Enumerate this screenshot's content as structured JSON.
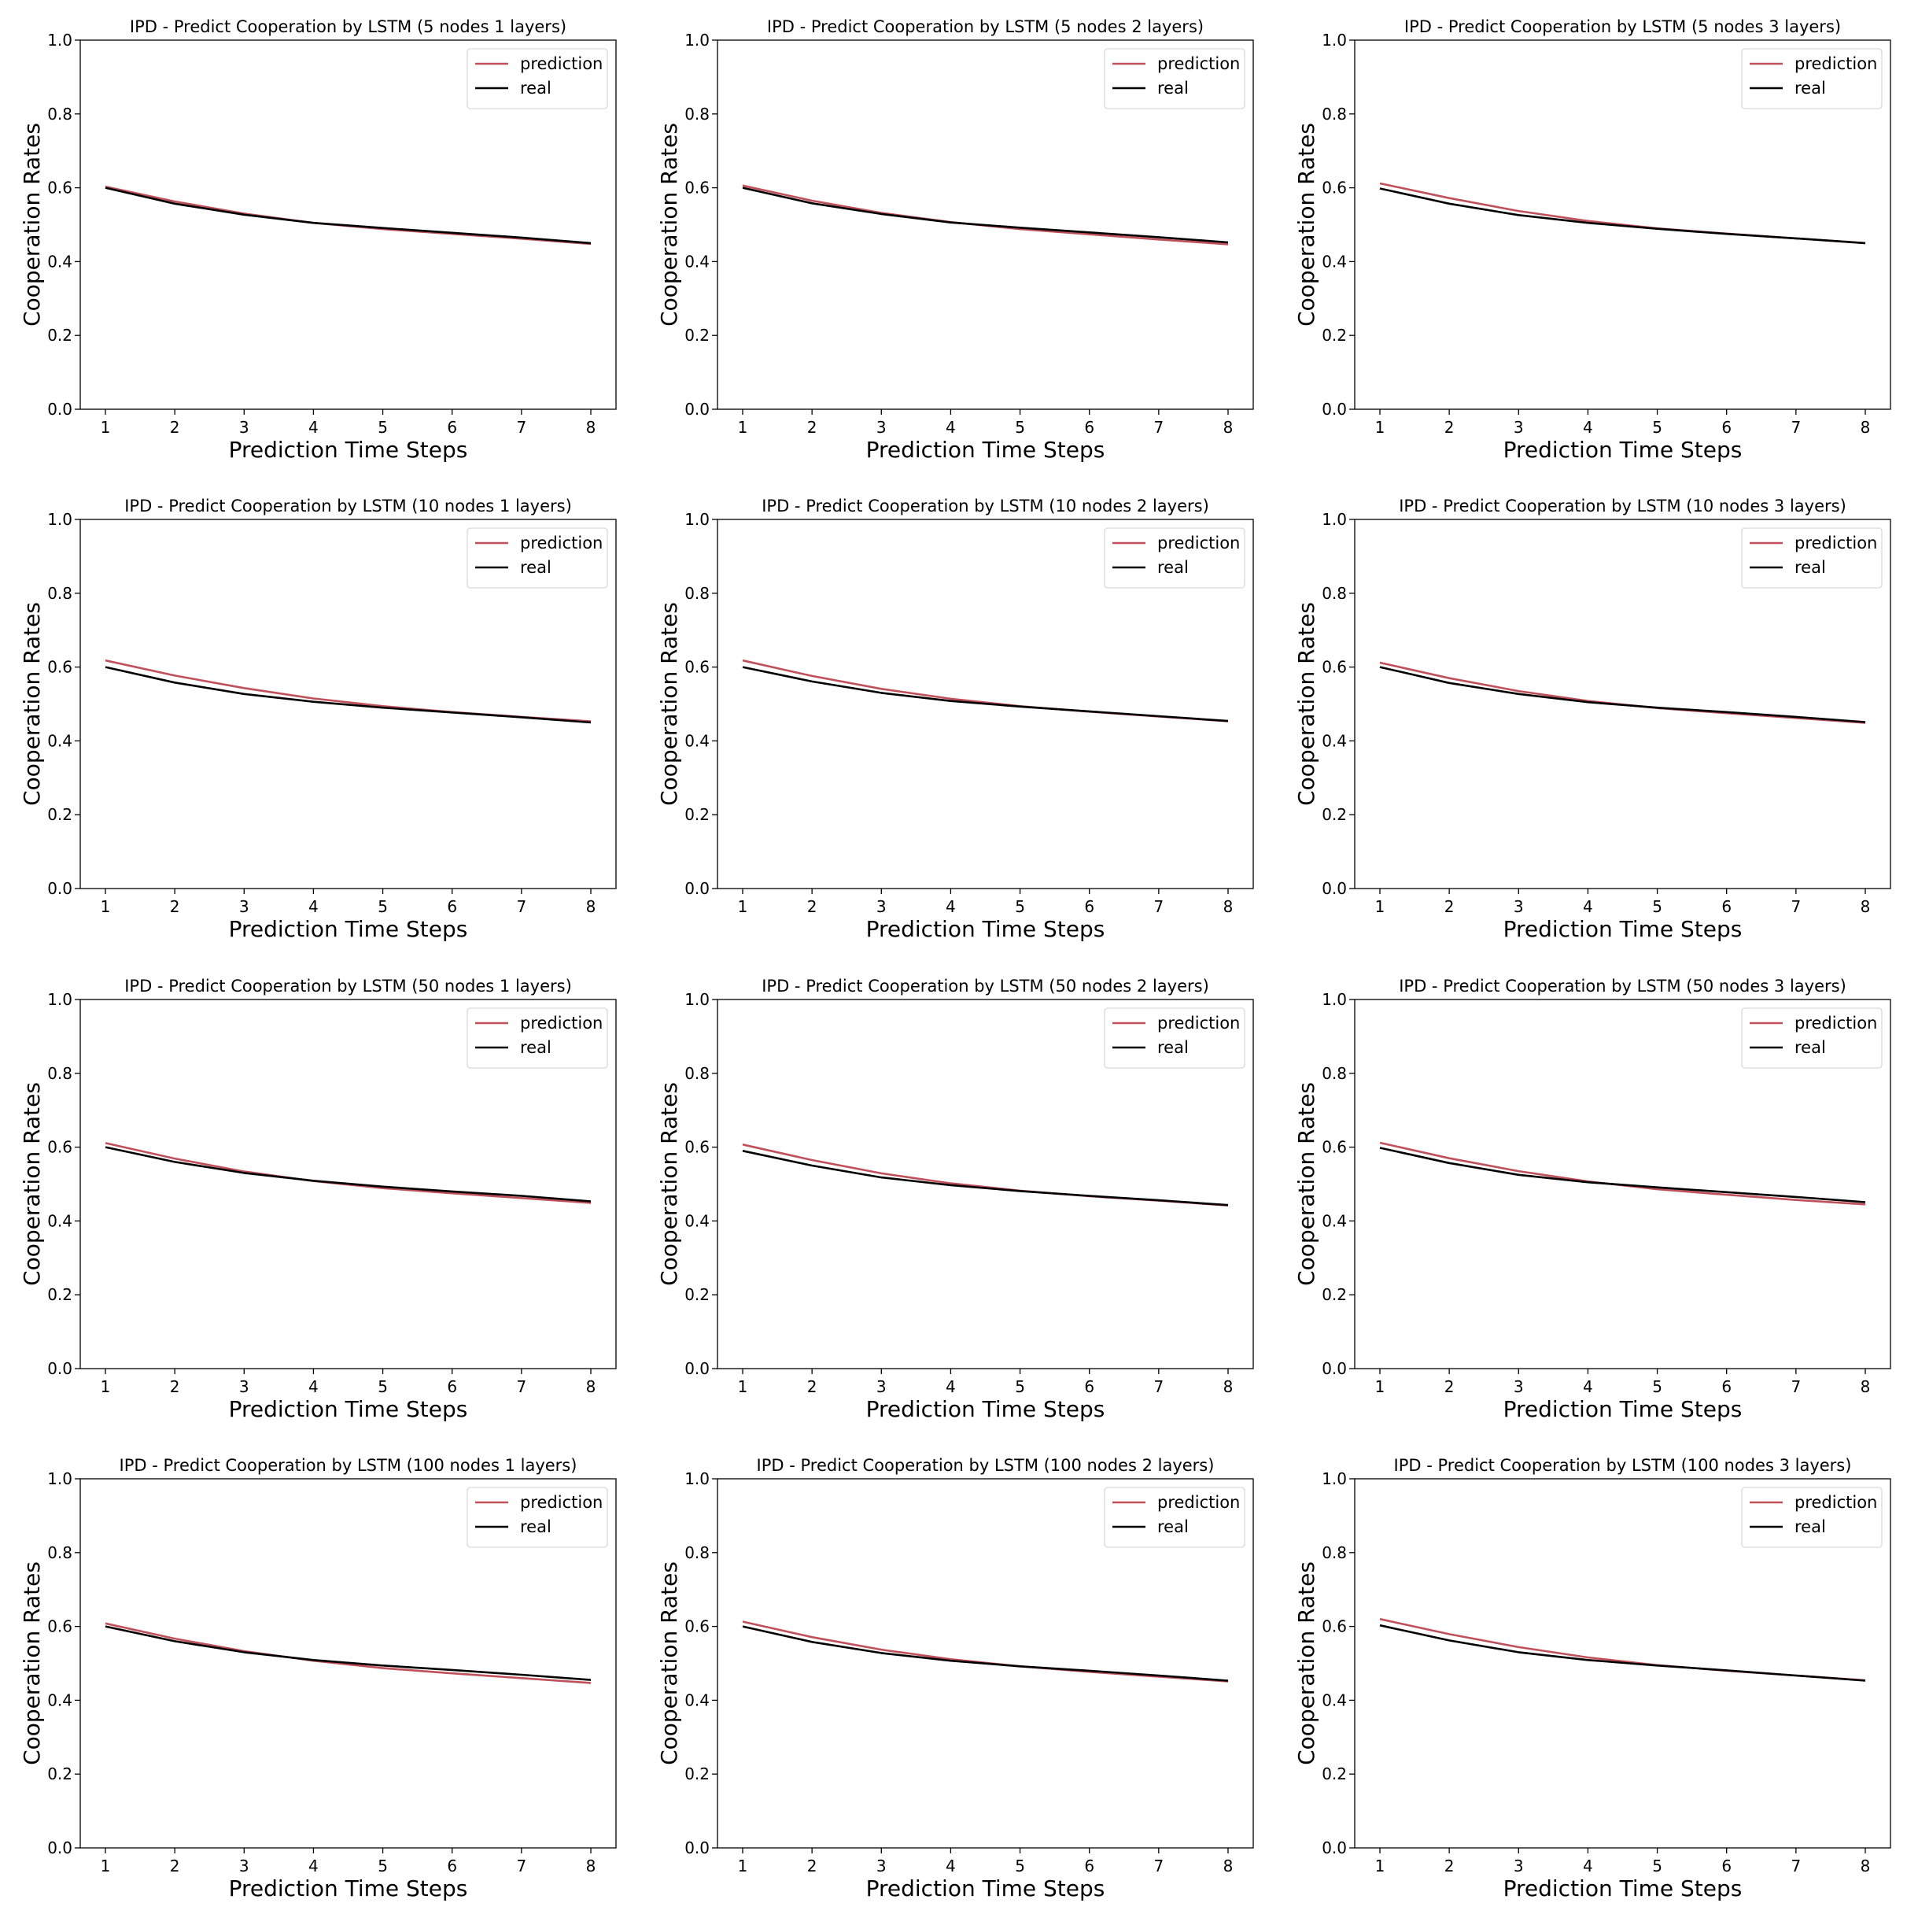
{
  "chart_data": [
    {
      "type": "line",
      "title": "IPD - Predict Cooperation by LSTM (5 nodes 1 layers)",
      "xlabel": "Prediction Time Steps",
      "ylabel": "Cooperation Rates",
      "x": [
        1,
        2,
        3,
        4,
        5,
        6,
        7,
        8
      ],
      "xticks": [
        "1",
        "2",
        "3",
        "4",
        "5",
        "6",
        "7",
        "8"
      ],
      "yticks": [
        "0.0",
        "0.2",
        "0.4",
        "0.6",
        "0.8",
        "1.0"
      ],
      "ylim": [
        0,
        1
      ],
      "legend": "top-right",
      "grid": false,
      "series": [
        {
          "name": "prediction",
          "color": "#c0505a",
          "values": [
            0.603,
            0.563,
            0.53,
            0.505,
            0.488,
            0.475,
            0.462,
            0.448
          ]
        },
        {
          "name": "real",
          "color": "#000000",
          "values": [
            0.6,
            0.557,
            0.527,
            0.505,
            0.491,
            0.478,
            0.465,
            0.45
          ]
        }
      ]
    },
    {
      "type": "line",
      "title": "IPD - Predict Cooperation by LSTM (5 nodes 2 layers)",
      "xlabel": "Prediction Time Steps",
      "ylabel": "Cooperation Rates",
      "x": [
        1,
        2,
        3,
        4,
        5,
        6,
        7,
        8
      ],
      "xticks": [
        "1",
        "2",
        "3",
        "4",
        "5",
        "6",
        "7",
        "8"
      ],
      "yticks": [
        "0.0",
        "0.2",
        "0.4",
        "0.6",
        "0.8",
        "1.0"
      ],
      "ylim": [
        0,
        1
      ],
      "legend": "top-right",
      "grid": false,
      "series": [
        {
          "name": "prediction",
          "color": "#c0505a",
          "values": [
            0.606,
            0.565,
            0.532,
            0.507,
            0.488,
            0.474,
            0.46,
            0.447
          ]
        },
        {
          "name": "real",
          "color": "#000000",
          "values": [
            0.6,
            0.558,
            0.529,
            0.506,
            0.492,
            0.479,
            0.466,
            0.452
          ]
        }
      ]
    },
    {
      "type": "line",
      "title": "IPD - Predict Cooperation by LSTM (5 nodes 3 layers)",
      "xlabel": "Prediction Time Steps",
      "ylabel": "Cooperation Rates",
      "x": [
        1,
        2,
        3,
        4,
        5,
        6,
        7,
        8
      ],
      "xticks": [
        "1",
        "2",
        "3",
        "4",
        "5",
        "6",
        "7",
        "8"
      ],
      "yticks": [
        "0.0",
        "0.2",
        "0.4",
        "0.6",
        "0.8",
        "1.0"
      ],
      "ylim": [
        0,
        1
      ],
      "legend": "top-right",
      "grid": false,
      "series": [
        {
          "name": "prediction",
          "color": "#c0505a",
          "values": [
            0.612,
            0.572,
            0.537,
            0.51,
            0.49,
            0.476,
            0.463,
            0.45
          ]
        },
        {
          "name": "real",
          "color": "#000000",
          "values": [
            0.598,
            0.557,
            0.526,
            0.505,
            0.489,
            0.475,
            0.463,
            0.45
          ]
        }
      ]
    },
    {
      "type": "line",
      "title": "IPD - Predict Cooperation by LSTM (10 nodes 1 layers)",
      "xlabel": "Prediction Time Steps",
      "ylabel": "Cooperation Rates",
      "x": [
        1,
        2,
        3,
        4,
        5,
        6,
        7,
        8
      ],
      "xticks": [
        "1",
        "2",
        "3",
        "4",
        "5",
        "6",
        "7",
        "8"
      ],
      "yticks": [
        "0.0",
        "0.2",
        "0.4",
        "0.6",
        "0.8",
        "1.0"
      ],
      "ylim": [
        0,
        1
      ],
      "legend": "top-right",
      "grid": false,
      "series": [
        {
          "name": "prediction",
          "color": "#c0505a",
          "values": [
            0.618,
            0.577,
            0.543,
            0.515,
            0.494,
            0.478,
            0.465,
            0.453
          ]
        },
        {
          "name": "real",
          "color": "#000000",
          "values": [
            0.6,
            0.558,
            0.527,
            0.506,
            0.49,
            0.477,
            0.464,
            0.45
          ]
        }
      ]
    },
    {
      "type": "line",
      "title": "IPD - Predict Cooperation by LSTM (10 nodes 2 layers)",
      "xlabel": "Prediction Time Steps",
      "ylabel": "Cooperation Rates",
      "x": [
        1,
        2,
        3,
        4,
        5,
        6,
        7,
        8
      ],
      "xticks": [
        "1",
        "2",
        "3",
        "4",
        "5",
        "6",
        "7",
        "8"
      ],
      "yticks": [
        "0.0",
        "0.2",
        "0.4",
        "0.6",
        "0.8",
        "1.0"
      ],
      "ylim": [
        0,
        1
      ],
      "legend": "top-right",
      "grid": false,
      "series": [
        {
          "name": "prediction",
          "color": "#c0505a",
          "values": [
            0.618,
            0.576,
            0.541,
            0.514,
            0.494,
            0.479,
            0.466,
            0.453
          ]
        },
        {
          "name": "real",
          "color": "#000000",
          "values": [
            0.6,
            0.561,
            0.53,
            0.508,
            0.493,
            0.48,
            0.467,
            0.454
          ]
        }
      ]
    },
    {
      "type": "line",
      "title": "IPD - Predict Cooperation by LSTM (10 nodes 3 layers)",
      "xlabel": "Prediction Time Steps",
      "ylabel": "Cooperation Rates",
      "x": [
        1,
        2,
        3,
        4,
        5,
        6,
        7,
        8
      ],
      "xticks": [
        "1",
        "2",
        "3",
        "4",
        "5",
        "6",
        "7",
        "8"
      ],
      "yticks": [
        "0.0",
        "0.2",
        "0.4",
        "0.6",
        "0.8",
        "1.0"
      ],
      "ylim": [
        0,
        1
      ],
      "legend": "top-right",
      "grid": false,
      "series": [
        {
          "name": "prediction",
          "color": "#c0505a",
          "values": [
            0.612,
            0.57,
            0.535,
            0.508,
            0.489,
            0.475,
            0.462,
            0.449
          ]
        },
        {
          "name": "real",
          "color": "#000000",
          "values": [
            0.6,
            0.557,
            0.527,
            0.505,
            0.49,
            0.478,
            0.465,
            0.451
          ]
        }
      ]
    },
    {
      "type": "line",
      "title": "IPD - Predict Cooperation by LSTM (50 nodes 1 layers)",
      "xlabel": "Prediction Time Steps",
      "ylabel": "Cooperation Rates",
      "x": [
        1,
        2,
        3,
        4,
        5,
        6,
        7,
        8
      ],
      "xticks": [
        "1",
        "2",
        "3",
        "4",
        "5",
        "6",
        "7",
        "8"
      ],
      "yticks": [
        "0.0",
        "0.2",
        "0.4",
        "0.6",
        "0.8",
        "1.0"
      ],
      "ylim": [
        0,
        1
      ],
      "legend": "top-right",
      "grid": false,
      "series": [
        {
          "name": "prediction",
          "color": "#c0505a",
          "values": [
            0.611,
            0.569,
            0.534,
            0.508,
            0.489,
            0.475,
            0.462,
            0.449
          ]
        },
        {
          "name": "real",
          "color": "#000000",
          "values": [
            0.6,
            0.56,
            0.53,
            0.509,
            0.493,
            0.48,
            0.468,
            0.453
          ]
        }
      ]
    },
    {
      "type": "line",
      "title": "IPD - Predict Cooperation by LSTM (50 nodes 2 layers)",
      "xlabel": "Prediction Time Steps",
      "ylabel": "Cooperation Rates",
      "x": [
        1,
        2,
        3,
        4,
        5,
        6,
        7,
        8
      ],
      "xticks": [
        "1",
        "2",
        "3",
        "4",
        "5",
        "6",
        "7",
        "8"
      ],
      "yticks": [
        "0.0",
        "0.2",
        "0.4",
        "0.6",
        "0.8",
        "1.0"
      ],
      "ylim": [
        0,
        1
      ],
      "legend": "top-right",
      "grid": false,
      "series": [
        {
          "name": "prediction",
          "color": "#c0505a",
          "values": [
            0.607,
            0.565,
            0.529,
            0.502,
            0.482,
            0.467,
            0.455,
            0.442
          ]
        },
        {
          "name": "real",
          "color": "#000000",
          "values": [
            0.59,
            0.55,
            0.518,
            0.497,
            0.481,
            0.468,
            0.456,
            0.443
          ]
        }
      ]
    },
    {
      "type": "line",
      "title": "IPD - Predict Cooperation by LSTM (50 nodes 3 layers)",
      "xlabel": "Prediction Time Steps",
      "ylabel": "Cooperation Rates",
      "x": [
        1,
        2,
        3,
        4,
        5,
        6,
        7,
        8
      ],
      "xticks": [
        "1",
        "2",
        "3",
        "4",
        "5",
        "6",
        "7",
        "8"
      ],
      "yticks": [
        "0.0",
        "0.2",
        "0.4",
        "0.6",
        "0.8",
        "1.0"
      ],
      "ylim": [
        0,
        1
      ],
      "legend": "top-right",
      "grid": false,
      "series": [
        {
          "name": "prediction",
          "color": "#c0505a",
          "values": [
            0.612,
            0.57,
            0.535,
            0.507,
            0.486,
            0.471,
            0.457,
            0.445
          ]
        },
        {
          "name": "real",
          "color": "#000000",
          "values": [
            0.598,
            0.557,
            0.525,
            0.505,
            0.491,
            0.478,
            0.465,
            0.451
          ]
        }
      ]
    },
    {
      "type": "line",
      "title": "IPD - Predict Cooperation by LSTM (100 nodes 1 layers)",
      "xlabel": "Prediction Time Steps",
      "ylabel": "Cooperation Rates",
      "x": [
        1,
        2,
        3,
        4,
        5,
        6,
        7,
        8
      ],
      "xticks": [
        "1",
        "2",
        "3",
        "4",
        "5",
        "6",
        "7",
        "8"
      ],
      "yticks": [
        "0.0",
        "0.2",
        "0.4",
        "0.6",
        "0.8",
        "1.0"
      ],
      "ylim": [
        0,
        1
      ],
      "legend": "top-right",
      "grid": false,
      "series": [
        {
          "name": "prediction",
          "color": "#c0505a",
          "values": [
            0.608,
            0.567,
            0.533,
            0.507,
            0.487,
            0.473,
            0.46,
            0.447
          ]
        },
        {
          "name": "real",
          "color": "#000000",
          "values": [
            0.6,
            0.56,
            0.53,
            0.509,
            0.494,
            0.482,
            0.469,
            0.455
          ]
        }
      ]
    },
    {
      "type": "line",
      "title": "IPD - Predict Cooperation by LSTM (100 nodes 2 layers)",
      "xlabel": "Prediction Time Steps",
      "ylabel": "Cooperation Rates",
      "x": [
        1,
        2,
        3,
        4,
        5,
        6,
        7,
        8
      ],
      "xticks": [
        "1",
        "2",
        "3",
        "4",
        "5",
        "6",
        "7",
        "8"
      ],
      "yticks": [
        "0.0",
        "0.2",
        "0.4",
        "0.6",
        "0.8",
        "1.0"
      ],
      "ylim": [
        0,
        1
      ],
      "legend": "top-right",
      "grid": false,
      "series": [
        {
          "name": "prediction",
          "color": "#c0505a",
          "values": [
            0.613,
            0.571,
            0.537,
            0.511,
            0.492,
            0.477,
            0.464,
            0.451
          ]
        },
        {
          "name": "real",
          "color": "#000000",
          "values": [
            0.6,
            0.558,
            0.528,
            0.507,
            0.492,
            0.48,
            0.467,
            0.453
          ]
        }
      ]
    },
    {
      "type": "line",
      "title": "IPD - Predict Cooperation by LSTM (100 nodes 3 layers)",
      "xlabel": "Prediction Time Steps",
      "ylabel": "Cooperation Rates",
      "x": [
        1,
        2,
        3,
        4,
        5,
        6,
        7,
        8
      ],
      "xticks": [
        "1",
        "2",
        "3",
        "4",
        "5",
        "6",
        "7",
        "8"
      ],
      "yticks": [
        "0.0",
        "0.2",
        "0.4",
        "0.6",
        "0.8",
        "1.0"
      ],
      "ylim": [
        0,
        1
      ],
      "legend": "top-right",
      "grid": false,
      "series": [
        {
          "name": "prediction",
          "color": "#c0505a",
          "values": [
            0.62,
            0.579,
            0.544,
            0.516,
            0.495,
            0.48,
            0.467,
            0.454
          ]
        },
        {
          "name": "real",
          "color": "#000000",
          "values": [
            0.603,
            0.562,
            0.53,
            0.509,
            0.494,
            0.481,
            0.467,
            0.453
          ]
        }
      ]
    }
  ]
}
